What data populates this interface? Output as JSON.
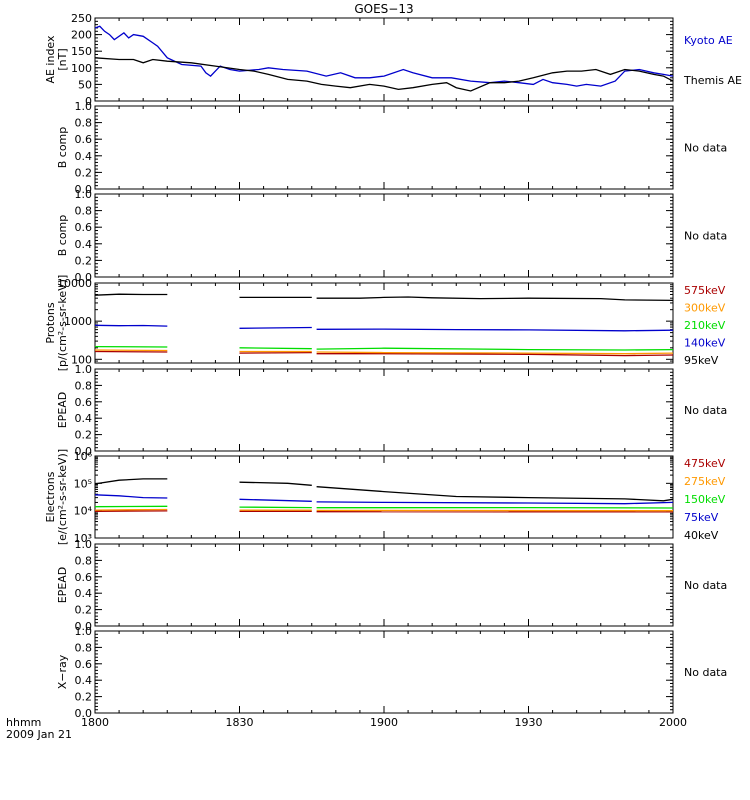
{
  "chart_data": [
    {
      "type": "line",
      "title": "GOES−13",
      "ylabel": [
        "AE index",
        "[nT]"
      ],
      "ylim": [
        0,
        250
      ],
      "yscale": "linear",
      "yticks": [
        "0",
        "50",
        "100",
        "150",
        "200",
        "250"
      ],
      "series": [
        {
          "name": "Kyoto AE",
          "color": "#0000cc",
          "x": [
            1800,
            1801,
            1802,
            1803,
            1804,
            1806,
            1807,
            1808,
            1810,
            1812,
            1813,
            1815,
            1818,
            1822,
            1823,
            1824,
            1825,
            1826,
            1828,
            1830,
            1834,
            1836,
            1839,
            1844,
            1848,
            1851,
            1854,
            1857,
            1900,
            1904,
            1906,
            1910,
            1914,
            1918,
            1922,
            1925,
            1928,
            1931,
            1933,
            1935,
            1938,
            1940,
            1942,
            1945,
            1948,
            1950,
            1953,
            1956,
            1958,
            2000
          ],
          "y": [
            220,
            225,
            210,
            200,
            185,
            205,
            190,
            200,
            195,
            175,
            165,
            130,
            110,
            105,
            85,
            75,
            90,
            105,
            95,
            90,
            95,
            100,
            95,
            90,
            75,
            85,
            70,
            70,
            75,
            95,
            85,
            70,
            70,
            60,
            55,
            60,
            55,
            50,
            65,
            55,
            50,
            45,
            50,
            45,
            60,
            90,
            95,
            85,
            80,
            75
          ]
        },
        {
          "name": "Themis AE",
          "color": "#000000",
          "x": [
            1800,
            1805,
            1808,
            1810,
            1812,
            1815,
            1820,
            1825,
            1830,
            1833,
            1836,
            1840,
            1844,
            1847,
            1850,
            1853,
            1857,
            1900,
            1903,
            1906,
            1910,
            1913,
            1915,
            1918,
            1922,
            1925,
            1928,
            1931,
            1935,
            1938,
            1941,
            1944,
            1947,
            1950,
            1953,
            1956,
            1958,
            2000
          ],
          "y": [
            130,
            125,
            125,
            115,
            125,
            120,
            115,
            105,
            95,
            90,
            80,
            65,
            60,
            50,
            45,
            40,
            50,
            45,
            35,
            40,
            50,
            55,
            40,
            30,
            55,
            55,
            60,
            70,
            85,
            90,
            90,
            95,
            80,
            95,
            90,
            80,
            75,
            60
          ]
        }
      ]
    },
    {
      "type": "line",
      "ylabel": [
        "B comp"
      ],
      "ylim": [
        0,
        1
      ],
      "yscale": "linear",
      "yticks": [
        "0.0",
        "0.2",
        "0.4",
        "0.6",
        "0.8",
        "1.0"
      ],
      "note": "No data",
      "series": []
    },
    {
      "type": "line",
      "ylabel": [
        "B comp"
      ],
      "ylim": [
        0,
        1
      ],
      "yscale": "linear",
      "yticks": [
        "0.0",
        "0.2",
        "0.4",
        "0.6",
        "0.8",
        "1.0"
      ],
      "note": "No data",
      "series": []
    },
    {
      "type": "line",
      "ylabel": [
        "Protons",
        "[p/(cm²-s-sr-keV)]"
      ],
      "ylim": [
        80,
        10000
      ],
      "yscale": "log",
      "yticks": [
        "100",
        "1000",
        "10000"
      ],
      "gaps": [
        [
          1815,
          1830
        ],
        [
          1845,
          1846
        ]
      ],
      "series": [
        {
          "name": "575keV",
          "color": "#aa0000",
          "x": [
            1800,
            1815,
            1830,
            1845,
            1846,
            1900,
            1930,
            1950,
            2000
          ],
          "y": [
            160,
            155,
            145,
            150,
            140,
            140,
            135,
            125,
            130
          ]
        },
        {
          "name": "300keV",
          "color": "#ff9900",
          "x": [
            1800,
            1815,
            1830,
            1845,
            1846,
            1900,
            1930,
            1950,
            2000
          ],
          "y": [
            175,
            170,
            160,
            160,
            155,
            150,
            145,
            140,
            145
          ]
        },
        {
          "name": "210keV",
          "color": "#00dd00",
          "x": [
            1800,
            1815,
            1830,
            1845,
            1846,
            1900,
            1930,
            1950,
            2000
          ],
          "y": [
            215,
            210,
            200,
            190,
            185,
            195,
            180,
            175,
            180
          ]
        },
        {
          "name": "140keV",
          "color": "#0000cc",
          "x": [
            1800,
            1805,
            1810,
            1815,
            1830,
            1845,
            1846,
            1900,
            1915,
            1930,
            1950,
            2000
          ],
          "y": [
            780,
            760,
            770,
            740,
            650,
            680,
            610,
            620,
            600,
            590,
            560,
            580
          ]
        },
        {
          "name": "95keV",
          "color": "#000000",
          "x": [
            1800,
            1805,
            1810,
            1815,
            1830,
            1845,
            1846,
            1855,
            1900,
            1905,
            1910,
            1920,
            1930,
            1945,
            1950,
            2000
          ],
          "y": [
            4800,
            5100,
            5000,
            5000,
            4200,
            4200,
            4000,
            4000,
            4200,
            4300,
            4100,
            3900,
            4000,
            3900,
            3600,
            3500
          ]
        }
      ]
    },
    {
      "type": "line",
      "ylabel": [
        "EPEAD"
      ],
      "ylim": [
        0,
        1
      ],
      "yscale": "linear",
      "yticks": [
        "0.0",
        "0.2",
        "0.4",
        "0.6",
        "0.8",
        "1.0"
      ],
      "note": "No data",
      "series": []
    },
    {
      "type": "line",
      "ylabel": [
        "Electrons",
        "[e/(cm²-s-sr-keV)]"
      ],
      "ylim": [
        1000,
        1000000
      ],
      "yscale": "log",
      "yticks": [
        "10³",
        "10⁴",
        "10⁵",
        "10⁶"
      ],
      "gaps": [
        [
          1815,
          1830
        ],
        [
          1845,
          1846
        ]
      ],
      "series": [
        {
          "name": "475keV",
          "color": "#aa0000",
          "x": [
            1800,
            1815,
            1830,
            1845,
            1846,
            2000
          ],
          "y": [
            9500,
            9800,
            9500,
            9500,
            9200,
            9000
          ]
        },
        {
          "name": "275keV",
          "color": "#ff9900",
          "x": [
            1800,
            1815,
            1830,
            1845,
            1846,
            2000
          ],
          "y": [
            10500,
            11000,
            10500,
            10500,
            10200,
            10000
          ]
        },
        {
          "name": "150keV",
          "color": "#00dd00",
          "x": [
            1800,
            1815,
            1830,
            1845,
            1846,
            1930,
            2000
          ],
          "y": [
            14000,
            14500,
            13500,
            13000,
            12800,
            13000,
            12500
          ]
        },
        {
          "name": "75keV",
          "color": "#0000cc",
          "x": [
            1800,
            1805,
            1810,
            1815,
            1830,
            1845,
            1846,
            1900,
            1930,
            1950,
            2000
          ],
          "y": [
            38000,
            35000,
            30000,
            29000,
            26000,
            22000,
            21000,
            20000,
            19000,
            18000,
            20000
          ]
        },
        {
          "name": "40keV",
          "color": "#000000",
          "x": [
            1800,
            1805,
            1810,
            1815,
            1830,
            1840,
            1845,
            1846,
            1900,
            1915,
            1930,
            1950,
            1958,
            2000
          ],
          "y": [
            95000,
            130000,
            145000,
            145000,
            110000,
            100000,
            85000,
            75000,
            50000,
            33000,
            30000,
            27000,
            23000,
            26000
          ]
        }
      ]
    },
    {
      "type": "line",
      "ylabel": [
        "EPEAD"
      ],
      "ylim": [
        0,
        1
      ],
      "yscale": "linear",
      "yticks": [
        "0.0",
        "0.2",
        "0.4",
        "0.6",
        "0.8",
        "1.0"
      ],
      "note": "No data",
      "series": []
    },
    {
      "type": "line",
      "ylabel": [
        "X−ray"
      ],
      "ylim": [
        0,
        1
      ],
      "yscale": "linear",
      "yticks": [
        "0.0",
        "0.2",
        "0.4",
        "0.6",
        "0.8",
        "1.0"
      ],
      "note": "No data",
      "series": []
    }
  ],
  "x_axis": {
    "range": [
      1800,
      2000
    ],
    "ticks": [
      "1800",
      "1830",
      "1900",
      "1930",
      "2000"
    ],
    "label": "hhmm",
    "date": "2009 Jan 21"
  }
}
